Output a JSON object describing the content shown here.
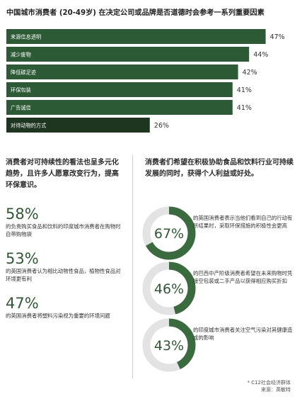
{
  "title": "中国城市消费者 (20-49岁) 在决定公司或品牌是否道德时会参考一系列重要因素",
  "colors": {
    "bar": "#2c5a35",
    "bar_last": "#1e3520",
    "accent_green": "#3a6b3e",
    "donut_track": "#e3e3e3"
  },
  "chart_data": [
    {
      "type": "bar",
      "orientation": "horizontal",
      "title": "中国城市消费者 (20-49岁) 在决定公司或品牌是否道德时会参考一系列重要因素",
      "categories": [
        "来源信息透明",
        "减少废物",
        "降低碳足迹",
        "环保包装",
        "广告诚信",
        "对待动物的方式"
      ],
      "values": [
        47,
        44,
        42,
        41,
        41,
        26
      ],
      "value_labels": [
        "47%",
        "44%",
        "42%",
        "41%",
        "41%",
        "26%"
      ],
      "xlim": [
        0,
        50
      ],
      "grid": false
    },
    {
      "type": "pie",
      "variant": "donut",
      "values": [
        67
      ],
      "label": "67%"
    },
    {
      "type": "pie",
      "variant": "donut",
      "values": [
        46
      ],
      "label": "46%"
    },
    {
      "type": "pie",
      "variant": "donut",
      "values": [
        43
      ],
      "label": "43%"
    }
  ],
  "left": {
    "heading": "消费者对可持续性的看法也呈多元化趋势，且许多人愿意改变行为，提高环保意识。",
    "stats": [
      {
        "pct": "58%",
        "text": "的负责购买食品和饮料的印度城市消费者在购物时自带购物袋"
      },
      {
        "pct": "53%",
        "text": "的英国消费者认为相比动物性食品，植物性食品对环境更有利"
      },
      {
        "pct": "47%",
        "text": "的英国消费者将塑料污染视为重要的环境问题"
      }
    ]
  },
  "right": {
    "heading": "消费者们希望在积极协助食品和饮料行业可持续发展的同时，获得个人利益或好处。",
    "donuts": [
      {
        "pct": "67%",
        "value": 67,
        "text": "的英国消费者表示当他们看到自己的行动有所结果时，采取环保措施的积极性会更高"
      },
      {
        "pct": "46%",
        "value": 46,
        "text": "的巴西中产阶级消费者希望在未来购物时凭接空包装或二手产品以获得相应购买折扣"
      },
      {
        "pct": "43%",
        "value": 43,
        "text": "的印度城市消费者关注空气污染对其健康造成的影响"
      }
    ]
  },
  "footnote": {
    "line1": "* C12社会经济群体",
    "line2": "来源：英敏特"
  }
}
